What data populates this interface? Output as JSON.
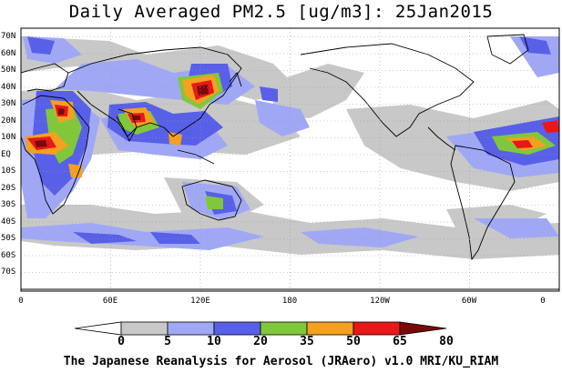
{
  "title": "Daily Averaged PM2.5 [ug/m3]: 25Jan2015",
  "footer": "The Japanese Reanalysis for Aerosol (JRAero) v1.0 MRI/KU_RIAM",
  "lat_labels": [
    "70N",
    "60N",
    "50N",
    "40N",
    "30N",
    "20N",
    "10N",
    "EQ",
    "10S",
    "20S",
    "30S",
    "40S",
    "50S",
    "60S",
    "70S"
  ],
  "lon_labels": [
    "0",
    "60E",
    "120E",
    "180",
    "120W",
    "60W",
    "0"
  ],
  "colorbar": {
    "ticks": [
      "0",
      "5",
      "10",
      "20",
      "35",
      "50",
      "65",
      "80"
    ],
    "colors": [
      "#ffffff",
      "#c8c8c8",
      "#a0a8f5",
      "#5860e8",
      "#80c83a",
      "#f5a020",
      "#e81818",
      "#780a0a"
    ]
  }
}
